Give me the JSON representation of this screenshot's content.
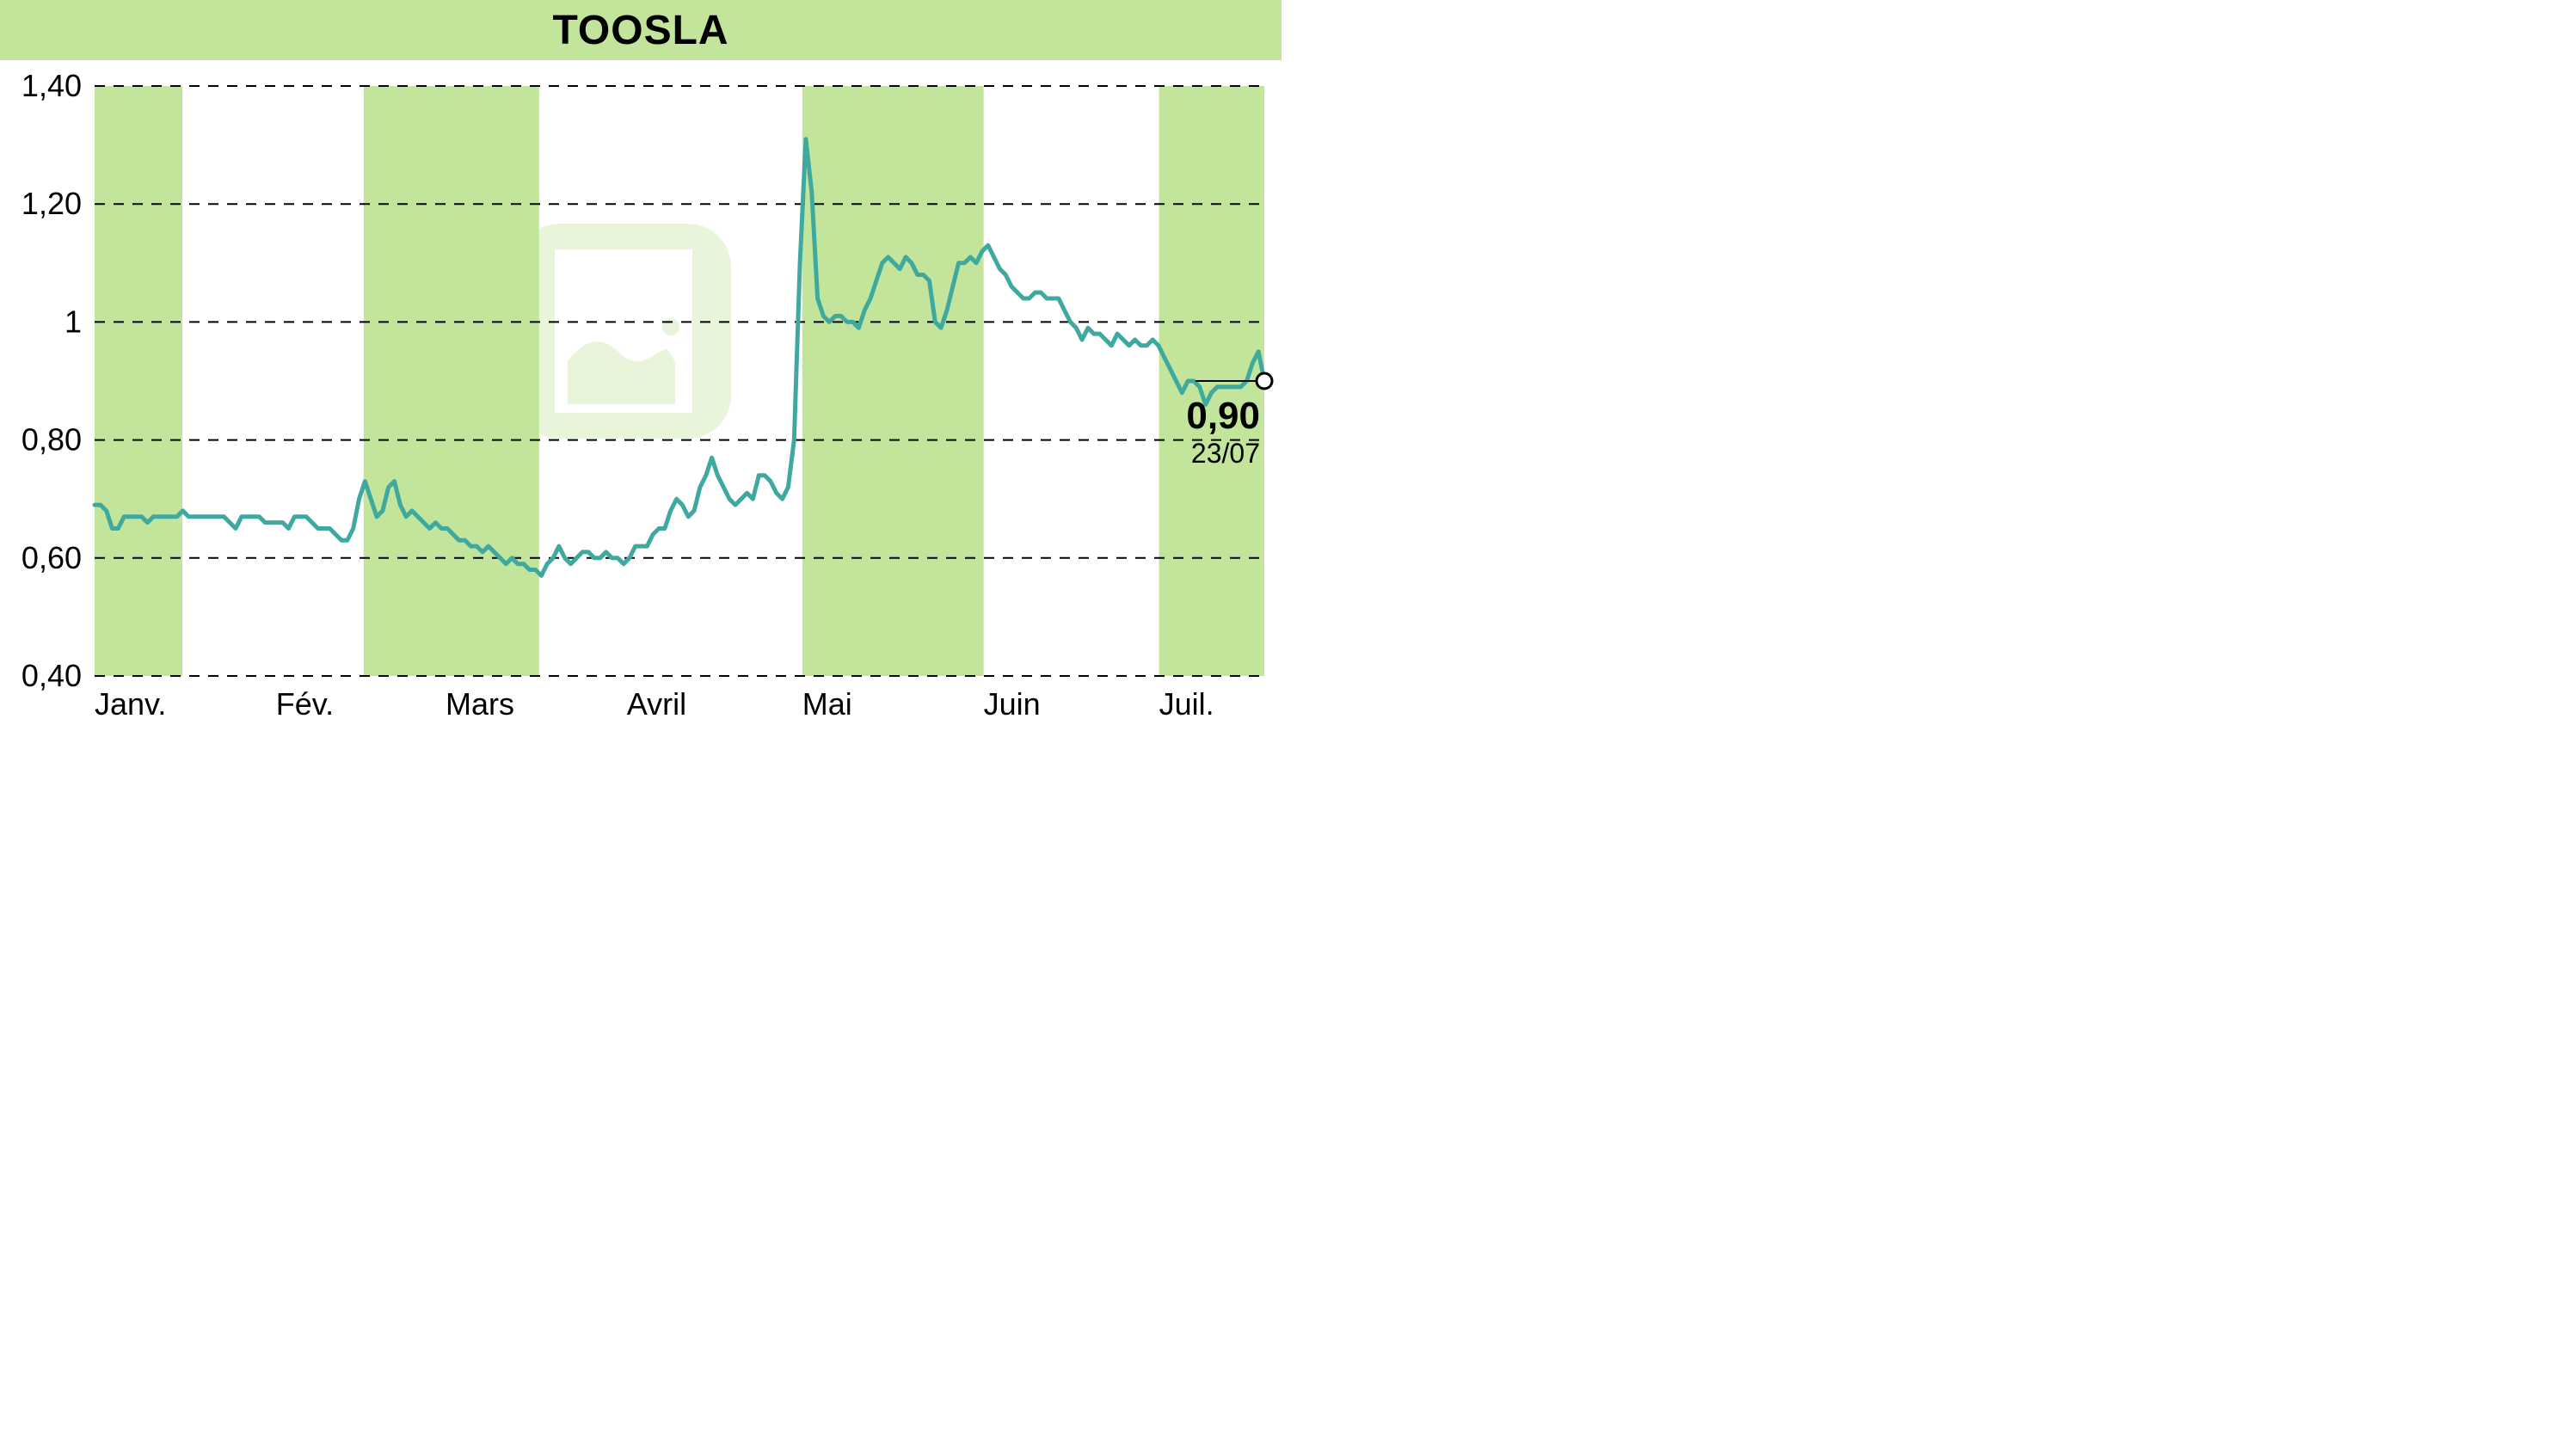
{
  "title": "TOOSLA",
  "title_background": "#c2e59b",
  "title_color": "#000000",
  "title_fontsize": 48,
  "chart": {
    "type": "line",
    "background_color": "#ffffff",
    "band_color": "#c2e59b",
    "line_color": "#3fa99f",
    "line_width": 5,
    "grid_color": "#000000",
    "grid_dash": "12 10",
    "watermark_color": "#c2e59b",
    "ylim": [
      0.4,
      1.4
    ],
    "yticks": [
      0.4,
      0.6,
      0.8,
      1.0,
      1.2,
      1.4
    ],
    "ytick_labels": [
      "0,40",
      "0,60",
      "0,80",
      "1",
      "1,20",
      "1,40"
    ],
    "ylabel_fontsize": 36,
    "xlim": [
      0,
      200
    ],
    "xticks": [
      0,
      31,
      60,
      91,
      121,
      152,
      182
    ],
    "xtick_labels": [
      "Janv.",
      "Fév.",
      "Mars",
      "Avril",
      "Mai",
      "Juin",
      "Juil."
    ],
    "xlabel_fontsize": 36,
    "bands": [
      {
        "start": 0,
        "end": 15
      },
      {
        "start": 46,
        "end": 76
      },
      {
        "start": 121,
        "end": 152
      },
      {
        "start": 182,
        "end": 200
      }
    ],
    "values": [
      0.69,
      0.69,
      0.68,
      0.65,
      0.65,
      0.67,
      0.67,
      0.67,
      0.67,
      0.66,
      0.67,
      0.67,
      0.67,
      0.67,
      0.67,
      0.68,
      0.67,
      0.67,
      0.67,
      0.67,
      0.67,
      0.67,
      0.67,
      0.66,
      0.65,
      0.67,
      0.67,
      0.67,
      0.67,
      0.66,
      0.66,
      0.66,
      0.66,
      0.65,
      0.67,
      0.67,
      0.67,
      0.66,
      0.65,
      0.65,
      0.65,
      0.64,
      0.63,
      0.63,
      0.65,
      0.7,
      0.73,
      0.7,
      0.67,
      0.68,
      0.72,
      0.73,
      0.69,
      0.67,
      0.68,
      0.67,
      0.66,
      0.65,
      0.66,
      0.65,
      0.65,
      0.64,
      0.63,
      0.63,
      0.62,
      0.62,
      0.61,
      0.62,
      0.61,
      0.6,
      0.59,
      0.6,
      0.59,
      0.59,
      0.58,
      0.58,
      0.57,
      0.59,
      0.6,
      0.62,
      0.6,
      0.59,
      0.6,
      0.61,
      0.61,
      0.6,
      0.6,
      0.61,
      0.6,
      0.6,
      0.59,
      0.6,
      0.62,
      0.62,
      0.62,
      0.64,
      0.65,
      0.65,
      0.68,
      0.7,
      0.69,
      0.67,
      0.68,
      0.72,
      0.74,
      0.77,
      0.74,
      0.72,
      0.7,
      0.69,
      0.7,
      0.71,
      0.7,
      0.74,
      0.74,
      0.73,
      0.71,
      0.7,
      0.72,
      0.8,
      1.1,
      1.31,
      1.22,
      1.04,
      1.01,
      1.0,
      1.01,
      1.01,
      1.0,
      1.0,
      0.99,
      1.02,
      1.04,
      1.07,
      1.1,
      1.11,
      1.1,
      1.09,
      1.11,
      1.1,
      1.08,
      1.08,
      1.07,
      1.0,
      0.99,
      1.02,
      1.06,
      1.1,
      1.1,
      1.11,
      1.1,
      1.12,
      1.13,
      1.11,
      1.09,
      1.08,
      1.06,
      1.05,
      1.04,
      1.04,
      1.05,
      1.05,
      1.04,
      1.04,
      1.04,
      1.02,
      1.0,
      0.99,
      0.97,
      0.99,
      0.98,
      0.98,
      0.97,
      0.96,
      0.98,
      0.97,
      0.96,
      0.97,
      0.96,
      0.96,
      0.97,
      0.96,
      0.94,
      0.92,
      0.9,
      0.88,
      0.9,
      0.9,
      0.89,
      0.86,
      0.88,
      0.89,
      0.89,
      0.89,
      0.89,
      0.89,
      0.9,
      0.93,
      0.95,
      0.9
    ],
    "end_value_label": "0,90",
    "end_date_label": "23/07",
    "end_value": 0.9,
    "end_marker_radius": 9
  }
}
